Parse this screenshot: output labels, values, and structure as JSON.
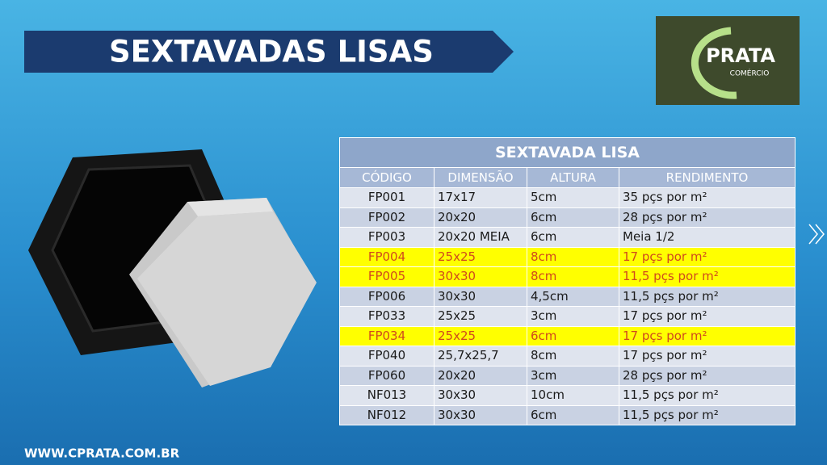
{
  "header": {
    "title": "SEXTAVADAS LISAS"
  },
  "logo": {
    "name": "PRATA",
    "subtitle": "COMÉRCIO"
  },
  "table": {
    "title": "SEXTAVADA LISA",
    "columns": [
      "CÓDIGO",
      "DIMENSÃO",
      "ALTURA",
      "RENDIMENTO"
    ],
    "rows": [
      {
        "cells": [
          "FP001",
          "17x17",
          "5cm",
          "35 pçs por m²"
        ],
        "highlight": false
      },
      {
        "cells": [
          "FP002",
          "20x20",
          "6cm",
          "28 pçs por m²"
        ],
        "highlight": false
      },
      {
        "cells": [
          "FP003",
          "20x20 MEIA",
          "6cm",
          "Meia 1/2"
        ],
        "highlight": false
      },
      {
        "cells": [
          "FP004",
          "25x25",
          "8cm",
          "17 pçs por m²"
        ],
        "highlight": true
      },
      {
        "cells": [
          "FP005",
          "30x30",
          "8cm",
          "11,5 pçs por m²"
        ],
        "highlight": true
      },
      {
        "cells": [
          "FP006",
          "30x30",
          "4,5cm",
          "11,5 pçs por m²"
        ],
        "highlight": false
      },
      {
        "cells": [
          "FP033",
          "25x25",
          "3cm",
          "17 pçs por m²"
        ],
        "highlight": false
      },
      {
        "cells": [
          "FP034",
          "25x25",
          "6cm",
          "17 pçs por m²"
        ],
        "highlight": true
      },
      {
        "cells": [
          "FP040",
          "25,7x25,7",
          "8cm",
          "17 pçs por m²"
        ],
        "highlight": false
      },
      {
        "cells": [
          "FP060",
          "20x20",
          "3cm",
          "28 pçs por m²"
        ],
        "highlight": false
      },
      {
        "cells": [
          "NF013",
          "30x30",
          "10cm",
          "11,5 pçs por m²"
        ],
        "highlight": false
      },
      {
        "cells": [
          "NF012",
          "30x30",
          "6cm",
          "11,5 pçs por m²"
        ],
        "highlight": false
      }
    ]
  },
  "footer": {
    "url": "WWW.CPRATA.COM.BR"
  }
}
